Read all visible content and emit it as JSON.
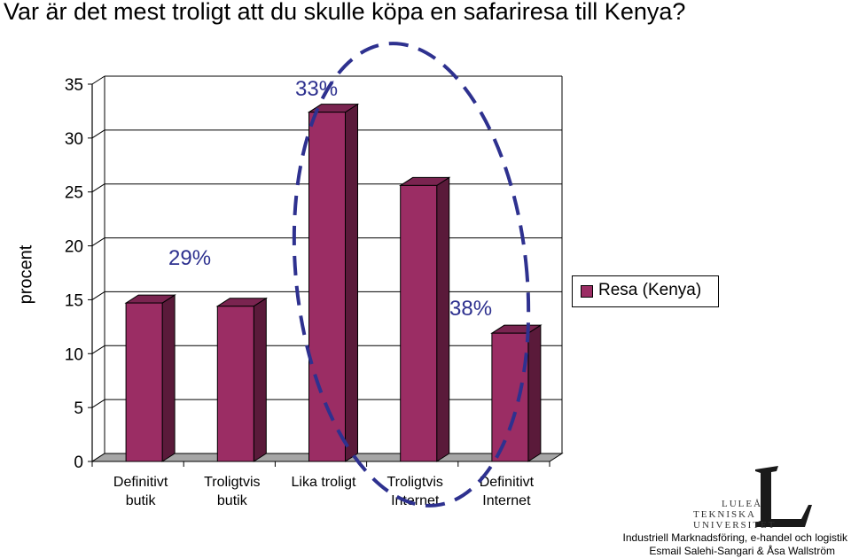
{
  "title": "Var är det mest troligt att du skulle köpa en safariresa till Kenya?",
  "chart_data": {
    "type": "bar",
    "categories": [
      [
        "Definitivt",
        "butik"
      ],
      [
        "Troligtvis",
        "butik"
      ],
      [
        "Lika troligt",
        ""
      ],
      [
        "Troligtvis",
        "Internet"
      ],
      [
        "Definitivt",
        "Internet"
      ]
    ],
    "series": [
      {
        "name": "Resa (Kenya)",
        "values": [
          14.7,
          14.4,
          32.4,
          25.6,
          11.9
        ],
        "color": "#9b2d64"
      }
    ],
    "ylabel": "procent",
    "xlabel": "",
    "ylim": [
      0,
      35
    ],
    "yticks": [
      0,
      5,
      10,
      15,
      20,
      25,
      30,
      35
    ],
    "grid": true,
    "three_d": true,
    "legend": "right",
    "annotations": [
      "29%",
      "33%",
      "38%"
    ],
    "annotation_color": "#2e318f"
  },
  "footer": {
    "line1": "Industriell Marknadsföring, e-handel och logistik",
    "line2": "Esmail Salehi-Sangari & Åsa Wallström"
  },
  "logo": {
    "lines": [
      "LULEÅ",
      "TEKNISKA",
      "UNIVERSITET"
    ]
  }
}
